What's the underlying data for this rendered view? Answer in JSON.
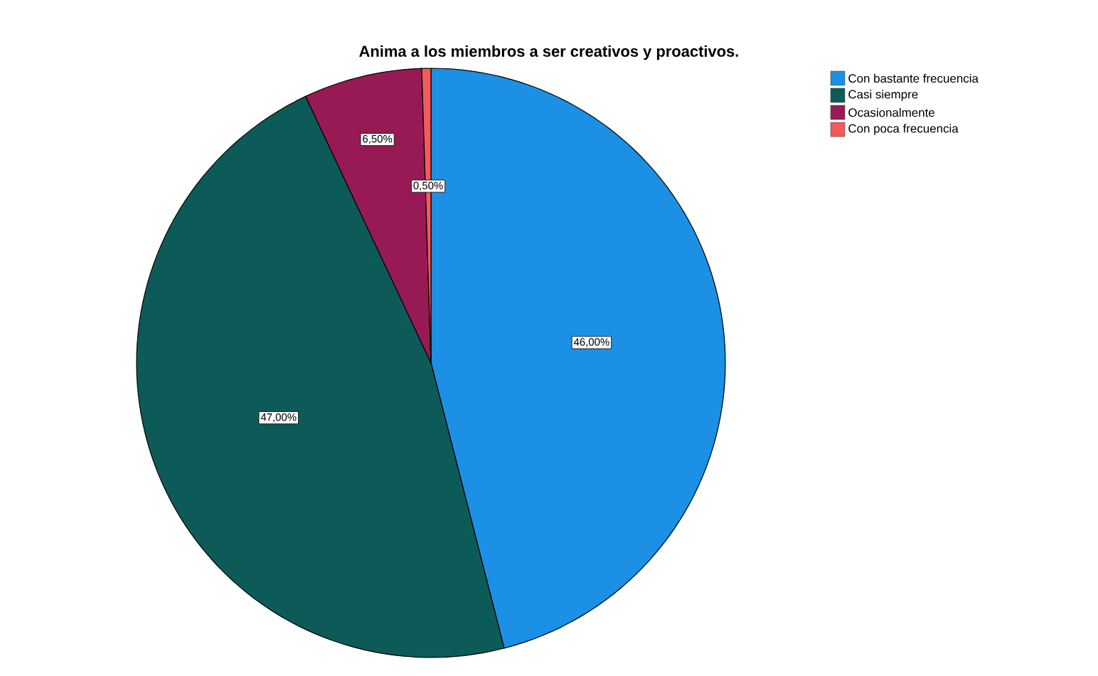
{
  "chart_data": {
    "type": "pie",
    "title": "Anima a los miembros a ser creativos y proactivos.",
    "categories": [
      "Con bastante frecuencia",
      "Casi siempre",
      "Ocasionalmente",
      "Con poca frecuencia"
    ],
    "values": [
      46,
      47,
      6.5,
      0.5
    ],
    "colors": [
      "#1b90e4",
      "#0d5b59",
      "#981a55",
      "#f45a5a"
    ],
    "value_labels": [
      "46,00%",
      "47,00%",
      "6,50%",
      "0,50%"
    ],
    "legend": "top right"
  }
}
